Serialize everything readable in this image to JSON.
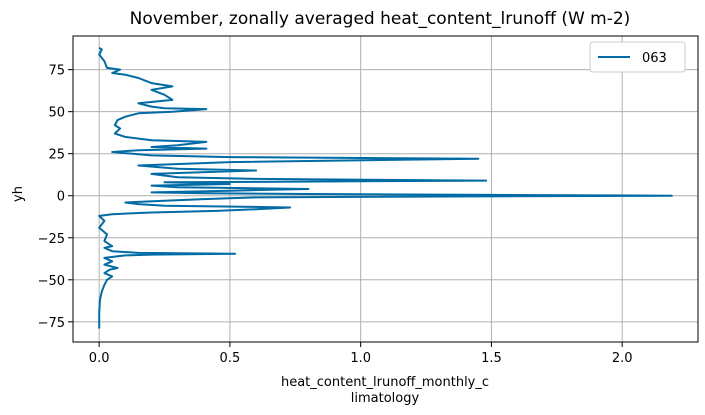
{
  "chart_data": {
    "type": "line",
    "title": "November, zonally averaged heat_content_lrunoff (W m-2)",
    "xlabel_line1": "heat_content_lrunoff_monthly_c",
    "xlabel_line2": "limatology",
    "ylabel": "yh",
    "xlim": [
      -0.1,
      2.29
    ],
    "ylim": [
      -87,
      95
    ],
    "xticks": [
      0.0,
      0.5,
      1.0,
      1.5,
      2.0
    ],
    "xtick_labels": [
      "0.0",
      "0.5",
      "1.0",
      "1.5",
      "2.0"
    ],
    "yticks": [
      -75,
      -50,
      -25,
      0,
      25,
      50,
      75
    ],
    "ytick_labels": [
      "−75",
      "−50",
      "−25",
      "0",
      "25",
      "50",
      "75"
    ],
    "grid": true,
    "legend_position": "top-right",
    "series": [
      {
        "name": "063",
        "color": "#006ba4",
        "points": [
          [
            0.0,
            -79
          ],
          [
            0.0,
            -70
          ],
          [
            0.003,
            -62
          ],
          [
            0.01,
            -57
          ],
          [
            0.02,
            -53
          ],
          [
            0.03,
            -50
          ],
          [
            0.05,
            -48
          ],
          [
            0.02,
            -46
          ],
          [
            0.04,
            -44
          ],
          [
            0.07,
            -43
          ],
          [
            0.02,
            -41
          ],
          [
            0.05,
            -39
          ],
          [
            0.02,
            -37
          ],
          [
            0.1,
            -35.5
          ],
          [
            0.2,
            -35
          ],
          [
            0.52,
            -34.5
          ],
          [
            0.15,
            -34
          ],
          [
            0.05,
            -33
          ],
          [
            0.02,
            -31
          ],
          [
            0.05,
            -30
          ],
          [
            0.02,
            -27
          ],
          [
            0.03,
            -23
          ],
          [
            0.0,
            -19
          ],
          [
            0.02,
            -15
          ],
          [
            0.0,
            -12
          ],
          [
            0.05,
            -11
          ],
          [
            0.2,
            -10
          ],
          [
            0.45,
            -9
          ],
          [
            0.6,
            -8
          ],
          [
            0.73,
            -7
          ],
          [
            0.55,
            -6.5
          ],
          [
            0.25,
            -6
          ],
          [
            0.15,
            -5
          ],
          [
            0.1,
            -4
          ],
          [
            0.25,
            -3
          ],
          [
            0.4,
            -2
          ],
          [
            0.6,
            -1
          ],
          [
            1.2,
            -0.5
          ],
          [
            2.19,
            0
          ],
          [
            1.5,
            0.5
          ],
          [
            0.8,
            1
          ],
          [
            0.4,
            1.5
          ],
          [
            0.2,
            2
          ],
          [
            0.5,
            3
          ],
          [
            0.8,
            4
          ],
          [
            0.3,
            5
          ],
          [
            0.2,
            6
          ],
          [
            0.5,
            7
          ],
          [
            0.25,
            8
          ],
          [
            1.48,
            9
          ],
          [
            0.6,
            10
          ],
          [
            0.3,
            11
          ],
          [
            0.2,
            13
          ],
          [
            0.6,
            15
          ],
          [
            0.3,
            16
          ],
          [
            0.15,
            18
          ],
          [
            0.5,
            20
          ],
          [
            1.45,
            22
          ],
          [
            0.5,
            23
          ],
          [
            0.2,
            24
          ],
          [
            0.05,
            26
          ],
          [
            0.15,
            27
          ],
          [
            0.41,
            28
          ],
          [
            0.2,
            29
          ],
          [
            0.3,
            30
          ],
          [
            0.41,
            32
          ],
          [
            0.2,
            33
          ],
          [
            0.1,
            35
          ],
          [
            0.06,
            37
          ],
          [
            0.08,
            40
          ],
          [
            0.06,
            42
          ],
          [
            0.07,
            45
          ],
          [
            0.1,
            47
          ],
          [
            0.15,
            49
          ],
          [
            0.28,
            50
          ],
          [
            0.41,
            51.5
          ],
          [
            0.25,
            52
          ],
          [
            0.2,
            53
          ],
          [
            0.15,
            55
          ],
          [
            0.28,
            57
          ],
          [
            0.25,
            60
          ],
          [
            0.2,
            63
          ],
          [
            0.28,
            65
          ],
          [
            0.2,
            67
          ],
          [
            0.15,
            70
          ],
          [
            0.1,
            72
          ],
          [
            0.05,
            73
          ],
          [
            0.08,
            75
          ],
          [
            0.03,
            76
          ],
          [
            0.02,
            80
          ],
          [
            0.0,
            84
          ],
          [
            0.01,
            87
          ],
          [
            0.0,
            88
          ]
        ]
      }
    ]
  }
}
